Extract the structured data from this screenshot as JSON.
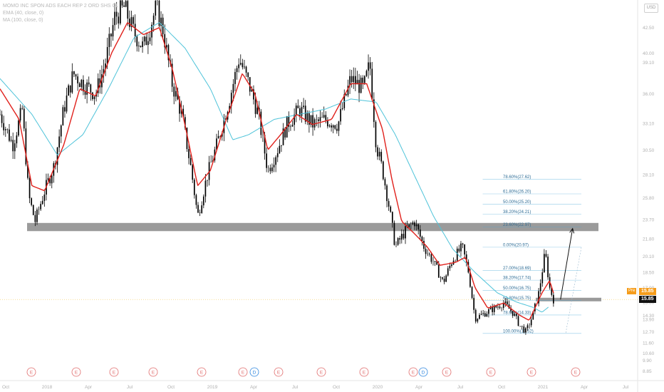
{
  "legend": {
    "symbol_line": "MOMO INC SPON ADS EACH REP 2 ORD SHS CL",
    "ema_line": "EMA (40, close, 0)",
    "ma_line": "MA (100, close, 0)"
  },
  "currency_badge": "USD",
  "price_tags": {
    "pre_label": "Pre",
    "pre_value": "15.85",
    "last_value": "15.85"
  },
  "colors": {
    "candles": "#000000",
    "ema": "#e0201b",
    "ma": "#4ec3d9",
    "support_band": "#8a8a8a",
    "fib_line": "#4aa8d8",
    "event_e": "#e06c6c",
    "event_d": "#2e86de",
    "pre_tag": "#f59c1a",
    "last_tag": "#111111"
  },
  "chart_data": {
    "type": "candlestick",
    "title": "MOMO INC SPON ADS EACH REP 2 ORD SHS CL",
    "ylim": [
      7.9,
      45.2
    ],
    "y_ticks": [
      "8.85",
      "9.90",
      "10.60",
      "11.60",
      "12.70",
      "13.90",
      "14.30",
      "15.60",
      "17.00",
      "18.50",
      "20.10",
      "21.80",
      "23.70",
      "25.80",
      "28.10",
      "30.50",
      "33.10",
      "36.00",
      "39.10",
      "40.00",
      "42.50"
    ],
    "x_ticks": [
      "Oct",
      "2018",
      "Apr",
      "Jul",
      "Oct",
      "2019",
      "Apr",
      "Jul",
      "Oct",
      "2020",
      "Apr",
      "Jul",
      "Oct",
      "2021",
      "Apr",
      "Jul"
    ],
    "price_points": [
      {
        "t": 0.0,
        "p": 34.0
      },
      {
        "t": 0.02,
        "p": 31.0
      },
      {
        "t": 0.035,
        "p": 34.5
      },
      {
        "t": 0.045,
        "p": 26.0
      },
      {
        "t": 0.055,
        "p": 23.5
      },
      {
        "t": 0.07,
        "p": 26.5
      },
      {
        "t": 0.085,
        "p": 29.0
      },
      {
        "t": 0.1,
        "p": 34.5
      },
      {
        "t": 0.115,
        "p": 38.0
      },
      {
        "t": 0.13,
        "p": 37.0
      },
      {
        "t": 0.15,
        "p": 36.0
      },
      {
        "t": 0.165,
        "p": 39.0
      },
      {
        "t": 0.18,
        "p": 43.5
      },
      {
        "t": 0.195,
        "p": 44.5
      },
      {
        "t": 0.21,
        "p": 42.0
      },
      {
        "t": 0.225,
        "p": 40.5
      },
      {
        "t": 0.245,
        "p": 44.5
      },
      {
        "t": 0.255,
        "p": 42.5
      },
      {
        "t": 0.27,
        "p": 37.0
      },
      {
        "t": 0.285,
        "p": 34.0
      },
      {
        "t": 0.3,
        "p": 28.5
      },
      {
        "t": 0.31,
        "p": 24.0
      },
      {
        "t": 0.325,
        "p": 28.0
      },
      {
        "t": 0.34,
        "p": 31.0
      },
      {
        "t": 0.36,
        "p": 35.5
      },
      {
        "t": 0.375,
        "p": 39.5
      },
      {
        "t": 0.39,
        "p": 37.0
      },
      {
        "t": 0.405,
        "p": 34.0
      },
      {
        "t": 0.42,
        "p": 28.5
      },
      {
        "t": 0.435,
        "p": 30.5
      },
      {
        "t": 0.45,
        "p": 33.0
      },
      {
        "t": 0.47,
        "p": 34.5
      },
      {
        "t": 0.49,
        "p": 33.0
      },
      {
        "t": 0.51,
        "p": 33.5
      },
      {
        "t": 0.53,
        "p": 33.0
      },
      {
        "t": 0.55,
        "p": 37.5
      },
      {
        "t": 0.57,
        "p": 36.5
      },
      {
        "t": 0.58,
        "p": 39.0
      },
      {
        "t": 0.59,
        "p": 31.0
      },
      {
        "t": 0.6,
        "p": 28.5
      },
      {
        "t": 0.61,
        "p": 25.0
      },
      {
        "t": 0.62,
        "p": 21.0
      },
      {
        "t": 0.635,
        "p": 22.5
      },
      {
        "t": 0.65,
        "p": 23.5
      },
      {
        "t": 0.665,
        "p": 21.0
      },
      {
        "t": 0.68,
        "p": 19.5
      },
      {
        "t": 0.695,
        "p": 17.5
      },
      {
        "t": 0.71,
        "p": 19.8
      },
      {
        "t": 0.725,
        "p": 21.0
      },
      {
        "t": 0.735,
        "p": 18.5
      },
      {
        "t": 0.745,
        "p": 14.0
      },
      {
        "t": 0.76,
        "p": 14.5
      },
      {
        "t": 0.775,
        "p": 15.0
      },
      {
        "t": 0.79,
        "p": 15.5
      },
      {
        "t": 0.805,
        "p": 14.5
      },
      {
        "t": 0.815,
        "p": 13.3
      },
      {
        "t": 0.825,
        "p": 12.7
      },
      {
        "t": 0.835,
        "p": 14.2
      },
      {
        "t": 0.845,
        "p": 16.5
      },
      {
        "t": 0.855,
        "p": 20.5
      },
      {
        "t": 0.862,
        "p": 17.0
      },
      {
        "t": 0.868,
        "p": 15.85
      }
    ],
    "ema_points": [
      {
        "t": 0.0,
        "p": 36.5
      },
      {
        "t": 0.03,
        "p": 33.5
      },
      {
        "t": 0.05,
        "p": 27.0
      },
      {
        "t": 0.07,
        "p": 26.5
      },
      {
        "t": 0.1,
        "p": 31.0
      },
      {
        "t": 0.125,
        "p": 36.5
      },
      {
        "t": 0.15,
        "p": 35.8
      },
      {
        "t": 0.175,
        "p": 40.0
      },
      {
        "t": 0.2,
        "p": 43.0
      },
      {
        "t": 0.225,
        "p": 41.8
      },
      {
        "t": 0.25,
        "p": 42.5
      },
      {
        "t": 0.27,
        "p": 38.5
      },
      {
        "t": 0.29,
        "p": 33.0
      },
      {
        "t": 0.31,
        "p": 27.0
      },
      {
        "t": 0.33,
        "p": 28.5
      },
      {
        "t": 0.355,
        "p": 33.5
      },
      {
        "t": 0.38,
        "p": 38.0
      },
      {
        "t": 0.4,
        "p": 36.0
      },
      {
        "t": 0.42,
        "p": 30.5
      },
      {
        "t": 0.44,
        "p": 32.0
      },
      {
        "t": 0.465,
        "p": 34.0
      },
      {
        "t": 0.49,
        "p": 33.0
      },
      {
        "t": 0.52,
        "p": 33.5
      },
      {
        "t": 0.55,
        "p": 37.0
      },
      {
        "t": 0.575,
        "p": 37.0
      },
      {
        "t": 0.6,
        "p": 32.5
      },
      {
        "t": 0.615,
        "p": 27.5
      },
      {
        "t": 0.63,
        "p": 23.5
      },
      {
        "t": 0.65,
        "p": 22.3
      },
      {
        "t": 0.67,
        "p": 21.0
      },
      {
        "t": 0.69,
        "p": 19.2
      },
      {
        "t": 0.715,
        "p": 19.5
      },
      {
        "t": 0.73,
        "p": 20.0
      },
      {
        "t": 0.745,
        "p": 17.0
      },
      {
        "t": 0.765,
        "p": 15.0
      },
      {
        "t": 0.79,
        "p": 15.5
      },
      {
        "t": 0.815,
        "p": 14.3
      },
      {
        "t": 0.83,
        "p": 13.8
      },
      {
        "t": 0.85,
        "p": 16.5
      },
      {
        "t": 0.862,
        "p": 17.7
      },
      {
        "t": 0.868,
        "p": 16.5
      }
    ],
    "ma_points": [
      {
        "t": 0.0,
        "p": 37.5
      },
      {
        "t": 0.05,
        "p": 34.0
      },
      {
        "t": 0.09,
        "p": 30.0
      },
      {
        "t": 0.13,
        "p": 32.0
      },
      {
        "t": 0.17,
        "p": 36.5
      },
      {
        "t": 0.21,
        "p": 41.5
      },
      {
        "t": 0.25,
        "p": 43.0
      },
      {
        "t": 0.29,
        "p": 40.5
      },
      {
        "t": 0.33,
        "p": 36.5
      },
      {
        "t": 0.365,
        "p": 31.5
      },
      {
        "t": 0.39,
        "p": 32.0
      },
      {
        "t": 0.43,
        "p": 33.5
      },
      {
        "t": 0.47,
        "p": 34.0
      },
      {
        "t": 0.51,
        "p": 34.5
      },
      {
        "t": 0.55,
        "p": 35.5
      },
      {
        "t": 0.59,
        "p": 35.2
      },
      {
        "t": 0.62,
        "p": 32.0
      },
      {
        "t": 0.65,
        "p": 28.0
      },
      {
        "t": 0.68,
        "p": 24.0
      },
      {
        "t": 0.71,
        "p": 20.8
      },
      {
        "t": 0.745,
        "p": 18.5
      },
      {
        "t": 0.78,
        "p": 16.5
      },
      {
        "t": 0.81,
        "p": 15.6
      },
      {
        "t": 0.835,
        "p": 15.1
      },
      {
        "t": 0.85,
        "p": 14.6
      },
      {
        "t": 0.86,
        "p": 15.1
      }
    ],
    "fib_levels": [
      {
        "label": "78.60%(27.62)",
        "value": 27.62,
        "t_start": 0.757
      },
      {
        "label": "61.80%(26.20)",
        "value": 26.2,
        "t_start": 0.757
      },
      {
        "label": "50.00%(25.20)",
        "value": 25.2,
        "t_start": 0.757
      },
      {
        "label": "38.20%(24.21)",
        "value": 24.21,
        "t_start": 0.757
      },
      {
        "label": "23.60%(22.97)",
        "value": 22.97,
        "t_start": 0.757
      },
      {
        "label": "0.00%(20.97)",
        "value": 20.97,
        "t_start": 0.757
      },
      {
        "label": "27.00%(18.69)",
        "value": 18.69,
        "t_start": 0.757
      },
      {
        "label": "38.20%(17.74)",
        "value": 17.74,
        "t_start": 0.757
      },
      {
        "label": "50.00%(16.75)",
        "value": 16.75,
        "t_start": 0.757
      },
      {
        "label": "61.80%(15.75)",
        "value": 15.75,
        "t_start": 0.757
      },
      {
        "label": "78.60%(14.33)",
        "value": 14.33,
        "t_start": 0.757
      },
      {
        "label": "100.00%(12.52)",
        "value": 12.52,
        "t_start": 0.757
      }
    ],
    "support_band": {
      "low": 22.55,
      "high": 23.35
    },
    "last_price_band": {
      "low": 15.75,
      "high": 15.95
    },
    "current_price": 15.85,
    "arrow": {
      "from": {
        "t": 0.879,
        "p": 15.85
      },
      "to": {
        "t": 0.898,
        "p": 22.8
      }
    },
    "events": [
      "E",
      "E",
      "E",
      "E",
      "E",
      "E",
      "D",
      "E",
      "E",
      "E",
      "E",
      "D",
      "E",
      "E",
      "E",
      "E"
    ],
    "grid": false,
    "legend_position": "top-left"
  }
}
